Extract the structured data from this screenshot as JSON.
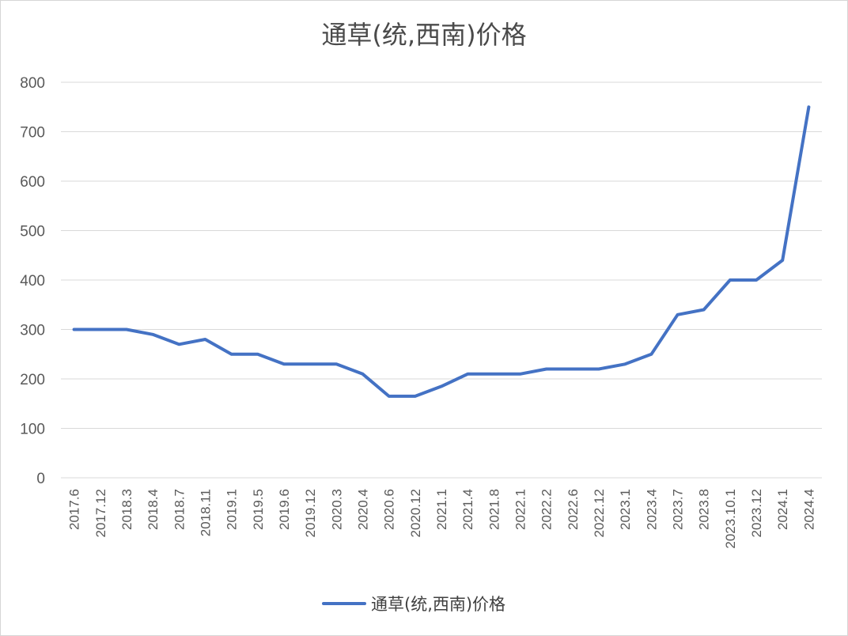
{
  "chart_data": {
    "type": "line",
    "title": "通草(统,西南)价格",
    "xlabel": "",
    "ylabel": "",
    "ylim": [
      0,
      800
    ],
    "yticks": [
      0,
      100,
      200,
      300,
      400,
      500,
      600,
      700,
      800
    ],
    "grid": true,
    "legend_position": "bottom",
    "line_color": "#4472c4",
    "categories": [
      "2017.6",
      "2017.12",
      "2018.3",
      "2018.4",
      "2018.7",
      "2018.11",
      "2019.1",
      "2019.5",
      "2019.6",
      "2019.12",
      "2020.3",
      "2020.4",
      "2020.6",
      "2020.12",
      "2021.1",
      "2021.4",
      "2021.8",
      "2022.1",
      "2022.2",
      "2022.6",
      "2022.12",
      "2023.1",
      "2023.4",
      "2023.7",
      "2023.8",
      "2023.10.1",
      "2023.12",
      "2024.1",
      "2024.4"
    ],
    "series": [
      {
        "name": "通草(统,西南)价格",
        "values": [
          300,
          300,
          300,
          290,
          270,
          280,
          250,
          250,
          230,
          230,
          230,
          210,
          165,
          165,
          185,
          210,
          210,
          210,
          220,
          220,
          220,
          230,
          250,
          330,
          340,
          400,
          400,
          440,
          750
        ]
      }
    ]
  }
}
